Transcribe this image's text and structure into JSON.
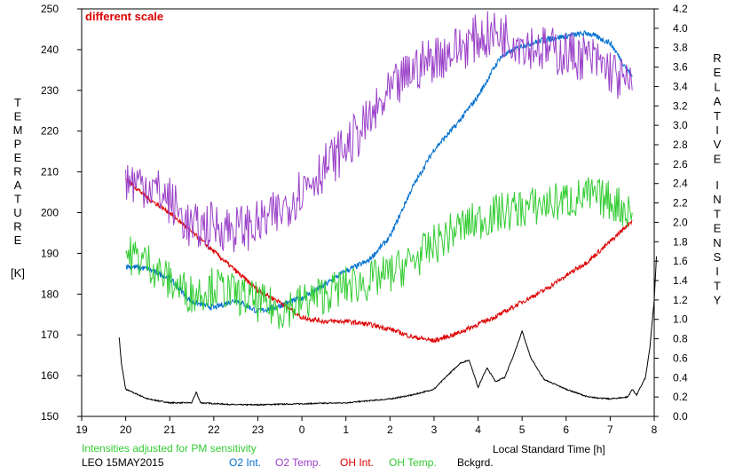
{
  "chart_data": {
    "type": "line",
    "title": "",
    "annotation": "different scale",
    "xlabel": "Local Standard Time [h]",
    "ylabel_left_letters": [
      "T",
      "E",
      "M",
      "P",
      "E",
      "R",
      "A",
      "T",
      "U",
      "R",
      "E"
    ],
    "ylabel_left_unit": "[K]",
    "ylabel_right_word1": [
      "R",
      "E",
      "L",
      "A",
      "T",
      "I",
      "V",
      "E"
    ],
    "ylabel_right_word2": [
      "I",
      "N",
      "T",
      "E",
      "N",
      "S",
      "I",
      "T",
      "Y"
    ],
    "x_ticks": [
      "19",
      "20",
      "21",
      "22",
      "23",
      "0",
      "1",
      "2",
      "3",
      "4",
      "5",
      "6",
      "7",
      "8"
    ],
    "y_left_ticks": [
      "150",
      "160",
      "170",
      "180",
      "190",
      "200",
      "210",
      "220",
      "230",
      "240",
      "250"
    ],
    "y_right_ticks": [
      "0.0",
      "0.2",
      "0.4",
      "0.6",
      "0.8",
      "1.0",
      "1.2",
      "1.4",
      "1.6",
      "1.8",
      "2.0",
      "2.2",
      "2.4",
      "2.6",
      "2.8",
      "3.0",
      "3.2",
      "3.4",
      "3.6",
      "3.8",
      "4.0",
      "4.2"
    ],
    "xlim": [
      19,
      32
    ],
    "ylim_left": [
      150,
      250
    ],
    "ylim_right": [
      0,
      4.2
    ],
    "grid": false,
    "legend_position": "bottom",
    "note": "Intensities adjusted for PM sensitivity",
    "station": "LEO 15MAY2015",
    "series": [
      {
        "name": "O2 Int.",
        "color": "#0070d0",
        "axis": "right",
        "points": [
          [
            20.0,
            1.55
          ],
          [
            20.5,
            1.52
          ],
          [
            21.0,
            1.42
          ],
          [
            21.5,
            1.18
          ],
          [
            22.0,
            1.12
          ],
          [
            22.5,
            1.2
          ],
          [
            23.0,
            1.08
          ],
          [
            23.5,
            1.14
          ],
          [
            24.0,
            1.22
          ],
          [
            24.5,
            1.35
          ],
          [
            25.0,
            1.5
          ],
          [
            25.5,
            1.6
          ],
          [
            26.0,
            1.85
          ],
          [
            26.5,
            2.35
          ],
          [
            27.0,
            2.75
          ],
          [
            27.5,
            3.0
          ],
          [
            28.0,
            3.3
          ],
          [
            28.5,
            3.7
          ],
          [
            29.0,
            3.82
          ],
          [
            29.5,
            3.88
          ],
          [
            30.0,
            3.92
          ],
          [
            30.5,
            3.95
          ],
          [
            31.0,
            3.85
          ],
          [
            31.5,
            3.5
          ]
        ]
      },
      {
        "name": "O2 Temp.",
        "color": "#9a40c8",
        "axis": "left",
        "points": [
          [
            20.0,
            208
          ],
          [
            20.5,
            207
          ],
          [
            21.0,
            203
          ],
          [
            21.5,
            196
          ],
          [
            22.0,
            197
          ],
          [
            22.5,
            196
          ],
          [
            23.0,
            197
          ],
          [
            23.5,
            200
          ],
          [
            24.0,
            206
          ],
          [
            24.5,
            211
          ],
          [
            25.0,
            216
          ],
          [
            25.5,
            222
          ],
          [
            26.0,
            229
          ],
          [
            26.5,
            235
          ],
          [
            27.0,
            238
          ],
          [
            27.5,
            240
          ],
          [
            28.0,
            243
          ],
          [
            28.5,
            244
          ],
          [
            29.0,
            242
          ],
          [
            29.5,
            240
          ],
          [
            30.0,
            239
          ],
          [
            30.5,
            238
          ],
          [
            31.0,
            235
          ],
          [
            31.5,
            230
          ]
        ]
      },
      {
        "name": "OH Int.",
        "color": "#dd0000",
        "axis": "right",
        "points": [
          [
            20.0,
            2.45
          ],
          [
            20.5,
            2.25
          ],
          [
            21.0,
            2.1
          ],
          [
            21.5,
            1.9
          ],
          [
            22.0,
            1.7
          ],
          [
            22.5,
            1.5
          ],
          [
            23.0,
            1.3
          ],
          [
            23.5,
            1.18
          ],
          [
            24.0,
            1.02
          ],
          [
            24.5,
            0.98
          ],
          [
            25.0,
            0.98
          ],
          [
            25.5,
            0.95
          ],
          [
            26.0,
            0.9
          ],
          [
            26.5,
            0.82
          ],
          [
            27.0,
            0.78
          ],
          [
            27.5,
            0.85
          ],
          [
            28.0,
            0.95
          ],
          [
            28.5,
            1.05
          ],
          [
            29.0,
            1.18
          ],
          [
            29.5,
            1.3
          ],
          [
            30.0,
            1.45
          ],
          [
            30.5,
            1.6
          ],
          [
            31.0,
            1.8
          ],
          [
            31.5,
            2.02
          ]
        ]
      },
      {
        "name": "OH Temp.",
        "color": "#33cc33",
        "axis": "left",
        "points": [
          [
            20.0,
            190
          ],
          [
            20.5,
            188
          ],
          [
            21.0,
            183
          ],
          [
            21.5,
            180
          ],
          [
            22.0,
            182
          ],
          [
            22.5,
            180
          ],
          [
            23.0,
            178
          ],
          [
            23.5,
            176
          ],
          [
            24.0,
            178
          ],
          [
            24.5,
            180
          ],
          [
            25.0,
            182
          ],
          [
            25.5,
            183
          ],
          [
            26.0,
            185
          ],
          [
            26.5,
            188
          ],
          [
            27.0,
            192
          ],
          [
            27.5,
            196
          ],
          [
            28.0,
            198
          ],
          [
            28.5,
            200
          ],
          [
            29.0,
            201
          ],
          [
            29.5,
            202
          ],
          [
            30.0,
            203
          ],
          [
            30.5,
            204
          ],
          [
            31.0,
            203
          ],
          [
            31.5,
            200
          ]
        ]
      },
      {
        "name": "Bckgrd.",
        "color": "#000000",
        "axis": "right",
        "points": [
          [
            19.85,
            0.82
          ],
          [
            19.9,
            0.55
          ],
          [
            20.0,
            0.28
          ],
          [
            20.5,
            0.18
          ],
          [
            21.0,
            0.14
          ],
          [
            21.5,
            0.14
          ],
          [
            21.6,
            0.25
          ],
          [
            21.7,
            0.14
          ],
          [
            22.5,
            0.12
          ],
          [
            23.0,
            0.12
          ],
          [
            24.0,
            0.13
          ],
          [
            25.0,
            0.14
          ],
          [
            25.5,
            0.16
          ],
          [
            26.0,
            0.18
          ],
          [
            26.5,
            0.22
          ],
          [
            27.0,
            0.28
          ],
          [
            27.3,
            0.42
          ],
          [
            27.6,
            0.55
          ],
          [
            27.8,
            0.58
          ],
          [
            28.0,
            0.3
          ],
          [
            28.2,
            0.5
          ],
          [
            28.4,
            0.36
          ],
          [
            28.6,
            0.4
          ],
          [
            28.8,
            0.62
          ],
          [
            29.0,
            0.88
          ],
          [
            29.2,
            0.6
          ],
          [
            29.5,
            0.38
          ],
          [
            30.0,
            0.28
          ],
          [
            30.5,
            0.2
          ],
          [
            31.0,
            0.18
          ],
          [
            31.4,
            0.2
          ],
          [
            31.5,
            0.28
          ],
          [
            31.6,
            0.22
          ],
          [
            31.8,
            0.4
          ],
          [
            31.9,
            0.7
          ],
          [
            32.0,
            1.2
          ],
          [
            32.05,
            1.65
          ]
        ]
      }
    ]
  }
}
